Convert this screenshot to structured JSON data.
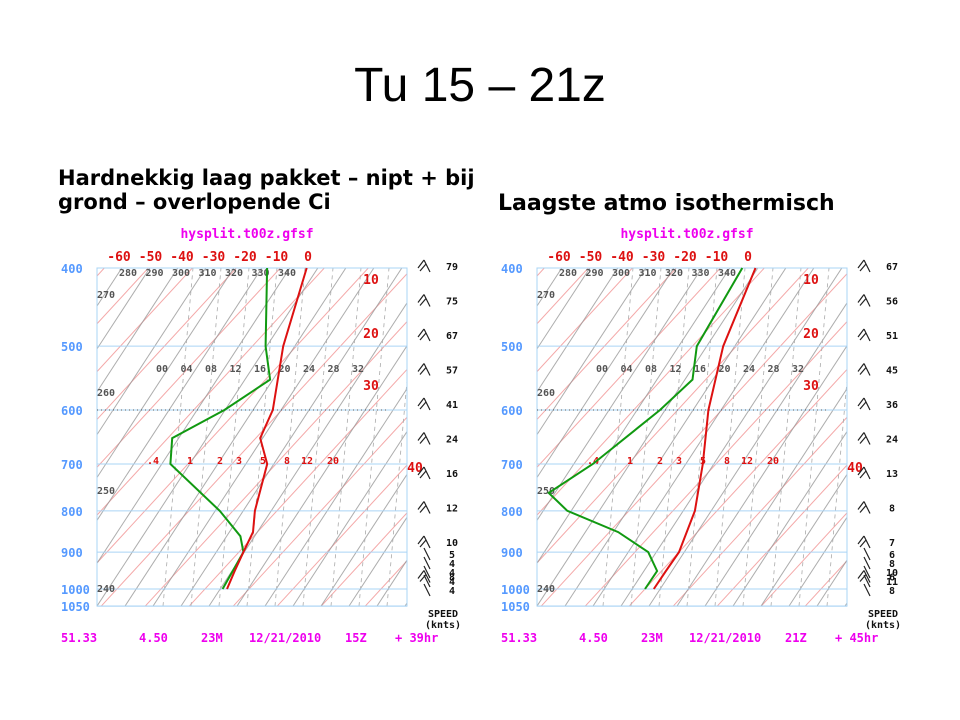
{
  "slide": {
    "title": "Tu 15 – 21z",
    "caption_left": "Hardnekkig laag pakket – nipt + bij grond – overlopende Ci",
    "caption_right": "Laagste atmo isothermisch"
  },
  "colors": {
    "title_magenta": "#ee00ee",
    "pressure_blue": "#5599ff",
    "temp_red": "#dd1111",
    "dewpoint_green": "#119911",
    "isotherm_pink": "#f4a8a8",
    "dry_adiabat_grey": "#999999",
    "frame_blue": "#aad4f5"
  },
  "chart_data": [
    {
      "type": "skew-t sounding",
      "header": "hysplit.t00z.gfsf",
      "pressure_levels": [
        "400",
        "500",
        "600",
        "700",
        "800",
        "900",
        "1000",
        "1050"
      ],
      "temperature_labels": [
        "-60",
        "-50",
        "-40",
        "-30",
        "-20",
        "-10",
        "0",
        "10",
        "20",
        "30",
        "40"
      ],
      "theta_labels_top": [
        "280",
        "290",
        "300",
        "310",
        "320",
        "330",
        "340"
      ],
      "theta_labels_side": [
        "270",
        "260",
        "250",
        "240"
      ],
      "mixing_ratio_labels_500": [
        "00",
        "04",
        "08",
        "12",
        "16",
        "20",
        "24",
        "28",
        "32"
      ],
      "mixing_ratio_labels_700": [
        ".4",
        "1",
        "2",
        "3",
        "5",
        "8",
        "12",
        "20"
      ],
      "wind_speed_label": "SPEED",
      "wind_speed_unit": "(knts)",
      "wind_speeds": [
        "79",
        "75",
        "67",
        "57",
        "41",
        "24",
        "16",
        "12",
        "10",
        "8",
        "5",
        "4",
        "4",
        "4",
        "4"
      ],
      "footer": [
        "51.33",
        "4.50",
        "23M",
        "12/21/2010",
        "15Z",
        "+ 39hr"
      ],
      "temperature_profile": [
        {
          "p": 400,
          "t": -44
        },
        {
          "p": 500,
          "t": -33
        },
        {
          "p": 600,
          "t": -22
        },
        {
          "p": 650,
          "t": -19
        },
        {
          "p": 700,
          "t": -12
        },
        {
          "p": 800,
          "t": -5
        },
        {
          "p": 850,
          "t": -1
        },
        {
          "p": 900,
          "t": 1
        },
        {
          "p": 950,
          "t": 3
        },
        {
          "p": 1000,
          "t": 5
        }
      ],
      "dewpoint_profile": [
        {
          "p": 400,
          "t": -53
        },
        {
          "p": 500,
          "t": -37
        },
        {
          "p": 550,
          "t": -29
        },
        {
          "p": 600,
          "t": -33
        },
        {
          "p": 650,
          "t": -39
        },
        {
          "p": 700,
          "t": -34
        },
        {
          "p": 800,
          "t": -13
        },
        {
          "p": 860,
          "t": -3
        },
        {
          "p": 900,
          "t": 1
        },
        {
          "p": 1000,
          "t": 4
        }
      ]
    },
    {
      "type": "skew-t sounding",
      "header": "hysplit.t00z.gfsf",
      "pressure_levels": [
        "400",
        "500",
        "600",
        "700",
        "800",
        "900",
        "1000",
        "1050"
      ],
      "temperature_labels": [
        "-60",
        "-50",
        "-40",
        "-30",
        "-20",
        "-10",
        "0",
        "10",
        "20",
        "30",
        "40"
      ],
      "theta_labels_top": [
        "280",
        "290",
        "300",
        "310",
        "320",
        "330",
        "340"
      ],
      "theta_labels_side": [
        "270",
        "260",
        "250",
        "240"
      ],
      "mixing_ratio_labels_500": [
        "00",
        "04",
        "08",
        "12",
        "16",
        "20",
        "24",
        "28",
        "32"
      ],
      "mixing_ratio_labels_700": [
        ".4",
        "1",
        "2",
        "3",
        "5",
        "8",
        "12",
        "20"
      ],
      "wind_speed_label": "SPEED",
      "wind_speed_unit": "(knts)",
      "wind_speeds": [
        "67",
        "56",
        "51",
        "45",
        "36",
        "24",
        "13",
        "8",
        "7",
        "6",
        "6",
        "8",
        "10",
        "11",
        "8"
      ],
      "footer": [
        "51.33",
        "4.50",
        "23M",
        "12/21/2010",
        "21Z",
        "+ 45hr"
      ],
      "temperature_profile": [
        {
          "p": 400,
          "t": -42
        },
        {
          "p": 500,
          "t": -33
        },
        {
          "p": 600,
          "t": -23
        },
        {
          "p": 700,
          "t": -13
        },
        {
          "p": 800,
          "t": -5
        },
        {
          "p": 900,
          "t": 0
        },
        {
          "p": 950,
          "t": 1
        },
        {
          "p": 1000,
          "t": 2
        }
      ],
      "dewpoint_profile": [
        {
          "p": 400,
          "t": -45
        },
        {
          "p": 500,
          "t": -39
        },
        {
          "p": 550,
          "t": -33
        },
        {
          "p": 600,
          "t": -34
        },
        {
          "p": 700,
          "t": -38
        },
        {
          "p": 760,
          "t": -42
        },
        {
          "p": 800,
          "t": -34
        },
        {
          "p": 850,
          "t": -18
        },
        {
          "p": 900,
          "t": -7
        },
        {
          "p": 950,
          "t": -1
        },
        {
          "p": 1000,
          "t": 0
        }
      ]
    }
  ]
}
